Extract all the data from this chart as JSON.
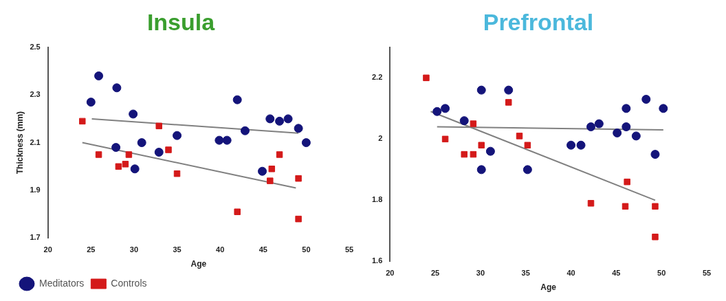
{
  "chart_data": [
    {
      "type": "scatter",
      "title": "Insula",
      "xlabel": "Age",
      "ylabel": "Thickness (mm)",
      "xlim": [
        20,
        55
      ],
      "xticks": [
        20,
        25,
        30,
        35,
        40,
        45,
        50,
        55
      ],
      "ylim": [
        1.7,
        2.5
      ],
      "yticks": [
        1.7,
        1.9,
        2.1,
        2.3,
        2.5
      ],
      "grid": false,
      "legend": "bottom left",
      "series": [
        {
          "name": "Meditators",
          "color": "#14147a",
          "marker": "circle",
          "x": [
            25.9,
            28.0,
            25.0,
            29.9,
            42.0,
            45.8,
            46.9,
            47.9,
            49.1,
            42.9,
            35.0,
            39.9,
            40.8,
            50.0,
            30.9,
            27.9,
            32.9,
            30.1,
            44.9
          ],
          "values": [
            2.38,
            2.33,
            2.27,
            2.22,
            2.28,
            2.2,
            2.19,
            2.2,
            2.16,
            2.15,
            2.13,
            2.11,
            2.11,
            2.1,
            2.1,
            2.08,
            2.06,
            1.99,
            1.98
          ]
        },
        {
          "name": "Controls",
          "color": "#d41a1a",
          "marker": "square",
          "x": [
            24.0,
            32.9,
            46.9,
            25.9,
            29.4,
            34.0,
            28.2,
            29.0,
            35.0,
            46.0,
            45.8,
            49.1,
            42.0,
            49.1
          ],
          "values": [
            2.19,
            2.17,
            2.05,
            2.05,
            2.05,
            2.07,
            2.0,
            2.01,
            1.97,
            1.99,
            1.94,
            1.95,
            1.81,
            1.78
          ]
        },
        {
          "type": "line",
          "color": "#808080",
          "marker": "none",
          "x": [
            25.1,
            49.1
          ],
          "values": [
            2.2,
            2.14
          ]
        },
        {
          "type": "line",
          "color": "#808080",
          "marker": "none",
          "x": [
            24.0,
            48.8
          ],
          "values": [
            2.1,
            1.91
          ]
        }
      ]
    },
    {
      "type": "scatter",
      "title": "Prefrontal",
      "xlabel": "Age",
      "xlim": [
        20,
        55
      ],
      "xticks": [
        20,
        25,
        30,
        35,
        40,
        45,
        50,
        55
      ],
      "ylim": [
        1.6,
        2.3
      ],
      "yticks": [
        1.6,
        1.8,
        2,
        2.2
      ],
      "grid": false,
      "legend": false,
      "series": [
        {
          "color": "#14147a",
          "marker": "circle",
          "x": [
            30.1,
            33.1,
            25.2,
            26.1,
            28.2,
            46.1,
            48.3,
            50.2,
            42.2,
            43.1,
            45.1,
            46.1,
            47.2,
            40.0,
            41.1,
            31.1,
            49.3,
            30.1,
            35.2
          ],
          "values": [
            2.16,
            2.16,
            2.09,
            2.1,
            2.06,
            2.1,
            2.13,
            2.1,
            2.04,
            2.05,
            2.02,
            2.04,
            2.01,
            1.98,
            1.98,
            1.96,
            1.95,
            1.9,
            1.9
          ]
        },
        {
          "color": "#d41a1a",
          "marker": "square",
          "x": [
            24.0,
            33.1,
            29.2,
            26.1,
            34.3,
            35.2,
            30.1,
            28.2,
            29.2,
            46.2,
            42.2,
            46.0,
            49.3,
            49.3
          ],
          "values": [
            2.2,
            2.12,
            2.05,
            2.0,
            2.01,
            1.98,
            1.98,
            1.95,
            1.95,
            1.86,
            1.79,
            1.78,
            1.78,
            1.68
          ]
        },
        {
          "type": "line",
          "color": "#808080",
          "marker": "none",
          "x": [
            25.2,
            50.2
          ],
          "values": [
            2.04,
            2.03
          ]
        },
        {
          "type": "line",
          "color": "#808080",
          "marker": "none",
          "x": [
            24.5,
            49.3
          ],
          "values": [
            2.09,
            1.8
          ]
        }
      ]
    }
  ]
}
